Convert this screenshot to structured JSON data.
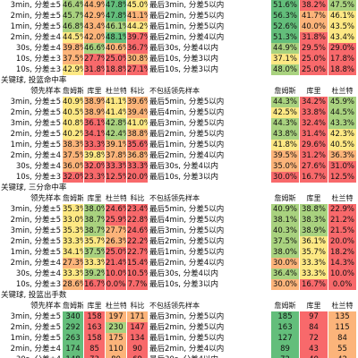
{
  "palette": {
    "dg": "#63be7b",
    "lg": "#a9d27f",
    "yl": "#fde884",
    "or": "#fcb47a",
    "rd": "#f8696b",
    "wh": "#ffffff"
  },
  "headers": [
    "詹姆斯",
    "库里",
    "杜兰特",
    "科比"
  ],
  "exclude_label": "不包括领先样本",
  "rows": [
    {
      "type": "data",
      "label": "3min, 分差±5",
      "v": [
        "46.4%",
        "44.9%",
        "47.8%",
        "45.0%"
      ],
      "c": [
        "lg",
        "or",
        "dg",
        "yl"
      ],
      "d": "最后3min, 分差5以内",
      "rv": [
        "51.6%",
        "38.2%",
        "47.5%"
      ],
      "rc": [
        "dg",
        "rd",
        "lg"
      ]
    },
    {
      "type": "data",
      "label": "2min, 分差±5",
      "v": [
        "45.7%",
        "42.9%",
        "47.8%",
        "41.1%"
      ],
      "c": [
        "lg",
        "or",
        "dg",
        "or"
      ],
      "d": "最后2min, 分差5以内",
      "rv": [
        "56.3%",
        "41.7%",
        "46.1%"
      ],
      "rc": [
        "dg",
        "or",
        "yl"
      ]
    },
    {
      "type": "data",
      "label": "1min, 分差±5",
      "v": [
        "46.8%",
        "43.4%",
        "46.1%",
        "44.2%"
      ],
      "c": [
        "lg",
        "or",
        "lg",
        "yl"
      ],
      "d": "最后1min, 分差5以内",
      "rv": [
        "52.6%",
        "40.0%",
        "43.5%"
      ],
      "rc": [
        "dg",
        "or",
        "yl"
      ]
    },
    {
      "type": "data",
      "label": "2min, 分差±4",
      "v": [
        "44.5%",
        "42.0%",
        "48.1%",
        "39.7%"
      ],
      "c": [
        "yl",
        "or",
        "dg",
        "rd"
      ],
      "d": "最后2min, 分差4以内",
      "rv": [
        "51.3%",
        "31.8%",
        "43.4%"
      ],
      "rc": [
        "dg",
        "rd",
        "yl"
      ]
    },
    {
      "type": "data",
      "label": "30s, 分差±4",
      "v": [
        "39.8%",
        "46.6%",
        "40.6%",
        "36.7%"
      ],
      "c": [
        "or",
        "lg",
        "or",
        "rd"
      ],
      "d": "最后30s, 分差4以内",
      "rv": [
        "44.9%",
        "29.5%",
        "29.0%"
      ],
      "rc": [
        "lg",
        "rd",
        "rd"
      ]
    },
    {
      "type": "data",
      "label": "10s, 分差±3",
      "v": [
        "37.5%",
        "27.7%",
        "25.0%",
        "30.8%"
      ],
      "c": [
        "or",
        "rd",
        "rd",
        "or"
      ],
      "d": "最后10s, 分差3以内",
      "rv": [
        "37.1%",
        "25.0%",
        "17.8%"
      ],
      "rc": [
        "yl",
        "rd",
        "rd"
      ]
    },
    {
      "type": "data",
      "label": "10s, 分差±3",
      "v": [
        "42.9%",
        "31.8%",
        "18.8%",
        "27.1%"
      ],
      "c": [
        "yl",
        "rd",
        "rd",
        "rd"
      ],
      "d": "最后10s, 分差3以内",
      "rv": [
        "48.0%",
        "25.0%",
        "18.8%"
      ],
      "rc": [
        "lg",
        "rd",
        "rd"
      ]
    },
    {
      "type": "title",
      "text": "关键球, 投篮命中率"
    },
    {
      "type": "header",
      "label": "领先样本"
    },
    {
      "type": "data",
      "label": "3min, 分差±5",
      "v": [
        "40.9%",
        "38.9%",
        "41.1%",
        "39.6%"
      ],
      "c": [
        "yl",
        "or",
        "yl",
        "or"
      ],
      "d": "最后5min, 分差5以内",
      "rv": [
        "44.3%",
        "34.2%",
        "45.9%"
      ],
      "rc": [
        "lg",
        "rd",
        "lg"
      ]
    },
    {
      "type": "data",
      "label": "2min, 分差±5",
      "v": [
        "40.5%",
        "38.9%",
        "41.4%",
        "39.4%"
      ],
      "c": [
        "yl",
        "or",
        "yl",
        "or"
      ],
      "d": "最后4min, 分差5以内",
      "rv": [
        "42.5%",
        "33.8%",
        "44.5%"
      ],
      "rc": [
        "yl",
        "rd",
        "lg"
      ]
    },
    {
      "type": "data",
      "label": "3min, 分差±5",
      "v": [
        "40.8%",
        "36.1%",
        "42.8%",
        "41.0%"
      ],
      "c": [
        "yl",
        "rd",
        "lg",
        "yl"
      ],
      "d": "最后3min, 分差5以内",
      "rv": [
        "44.3%",
        "32.4%",
        "43.3%"
      ],
      "rc": [
        "lg",
        "rd",
        "lg"
      ]
    },
    {
      "type": "data",
      "label": "2min, 分差±5",
      "v": [
        "40.2%",
        "34.1%",
        "42.4%",
        "38.8%"
      ],
      "c": [
        "yl",
        "rd",
        "lg",
        "or"
      ],
      "d": "最后2min, 分差5以内",
      "rv": [
        "43.8%",
        "31.4%",
        "42.3%"
      ],
      "rc": [
        "lg",
        "rd",
        "yl"
      ]
    },
    {
      "type": "data",
      "label": "1min, 分差±5",
      "v": [
        "38.3%",
        "33.3%",
        "39.1%",
        "35.6%"
      ],
      "c": [
        "or",
        "rd",
        "or",
        "rd"
      ],
      "d": "最后1min, 分差5以内",
      "rv": [
        "41.8%",
        "29.6%",
        "40.5%"
      ],
      "rc": [
        "yl",
        "rd",
        "yl"
      ]
    },
    {
      "type": "data",
      "label": "2min, 分差±4",
      "v": [
        "37.5%",
        "39.8%",
        "37.8%",
        "36.8%"
      ],
      "c": [
        "or",
        "yl",
        "or",
        "or"
      ],
      "d": "最后2min, 分差4以内",
      "rv": [
        "39.5%",
        "31.2%",
        "36.3%"
      ],
      "rc": [
        "or",
        "rd",
        "or"
      ]
    },
    {
      "type": "data",
      "label": "30s, 分差±4",
      "v": [
        "36.0%",
        "32.0%",
        "33.3%",
        "33.3%"
      ],
      "c": [
        "or",
        "rd",
        "rd",
        "rd"
      ],
      "d": "最后30s, 分差4以内",
      "rv": [
        "35.0%",
        "27.6%",
        "31.0%"
      ],
      "rc": [
        "or",
        "rd",
        "rd"
      ]
    },
    {
      "type": "data",
      "label": "10s, 分差±3",
      "v": [
        "32.0%",
        "23.3%",
        "12.5%",
        "20.0%"
      ],
      "c": [
        "rd",
        "rd",
        "rd",
        "rd"
      ],
      "d": "最后10s, 分差3以内",
      "rv": [
        "30.0%",
        "16.7%",
        "12.5%"
      ],
      "rc": [
        "rd",
        "rd",
        "rd"
      ]
    },
    {
      "type": "title",
      "text": "关键球, 三分命中率"
    },
    {
      "type": "header",
      "label": "领先样本"
    },
    {
      "type": "data",
      "label": "3min, 分差±5",
      "v": [
        "35.3%",
        "38.0%",
        "24.6%",
        "23.4%"
      ],
      "c": [
        "yl",
        "lg",
        "rd",
        "rd"
      ],
      "d": "最后5min, 分差5以内",
      "rv": [
        "40.9%",
        "38.8%",
        "22.9%"
      ],
      "rc": [
        "lg",
        "lg",
        "rd"
      ]
    },
    {
      "type": "data",
      "label": "2min, 分差±5",
      "v": [
        "33.0%",
        "38.7%",
        "25.9%",
        "22.8%"
      ],
      "c": [
        "yl",
        "lg",
        "rd",
        "rd"
      ],
      "d": "最后4min, 分差5以内",
      "rv": [
        "38.1%",
        "38.3%",
        "21.2%"
      ],
      "rc": [
        "lg",
        "lg",
        "rd"
      ]
    },
    {
      "type": "data",
      "label": "3min, 分差±5",
      "v": [
        "35.3%",
        "38.7%",
        "27.7%",
        "24.6%"
      ],
      "c": [
        "yl",
        "lg",
        "or",
        "rd"
      ],
      "d": "最后3min, 分差5以内",
      "rv": [
        "40.3%",
        "38.9%",
        "21.5%"
      ],
      "rc": [
        "lg",
        "lg",
        "rd"
      ]
    },
    {
      "type": "data",
      "label": "2min, 分差±5",
      "v": [
        "33.3%",
        "35.7%",
        "26.3%",
        "22.2%"
      ],
      "c": [
        "yl",
        "yl",
        "or",
        "rd"
      ],
      "d": "最后2min, 分差5以内",
      "rv": [
        "37.5%",
        "36.1%",
        "20.0%"
      ],
      "rc": [
        "lg",
        "yl",
        "rd"
      ]
    },
    {
      "type": "data",
      "label": "1min, 分差±5",
      "v": [
        "34.1%",
        "37.5%",
        "25.0%",
        "22.7%"
      ],
      "c": [
        "yl",
        "lg",
        "rd",
        "rd"
      ],
      "d": "最后1min, 分差5以内",
      "rv": [
        "38.0%",
        "35.7%",
        "18.2%"
      ],
      "rc": [
        "lg",
        "yl",
        "rd"
      ]
    },
    {
      "type": "data",
      "label": "2min, 分差±4",
      "v": [
        "27.3%",
        "33.3%",
        "21.4%",
        "15.4%"
      ],
      "c": [
        "or",
        "yl",
        "rd",
        "rd"
      ],
      "d": "最后2min, 分差4以内",
      "rv": [
        "30.0%",
        "33.3%",
        "14.3%"
      ],
      "rc": [
        "or",
        "yl",
        "rd"
      ]
    },
    {
      "type": "data",
      "label": "30s, 分差±4",
      "v": [
        "33.3%",
        "39.2%",
        "10.0%",
        "10.5%"
      ],
      "c": [
        "yl",
        "lg",
        "rd",
        "rd"
      ],
      "d": "最后30s, 分差4以内",
      "rv": [
        "36.4%",
        "33.3%",
        "10.0%"
      ],
      "rc": [
        "lg",
        "yl",
        "rd"
      ]
    },
    {
      "type": "data",
      "label": "10s, 分差±3",
      "v": [
        "28.6%",
        "16.7%",
        "0.0%",
        "7.7%"
      ],
      "c": [
        "or",
        "rd",
        "rd",
        "rd"
      ],
      "d": "最后10s, 分差3以内",
      "rv": [
        "30.0%",
        "16.7%",
        "0.0%"
      ],
      "rc": [
        "or",
        "rd",
        "rd"
      ]
    },
    {
      "type": "title",
      "text": "关键球, 投篮出手数"
    },
    {
      "type": "header",
      "label": "领先样本"
    },
    {
      "type": "data",
      "label": "3min, 分差±5",
      "v": [
        "340",
        "158",
        "197",
        "171"
      ],
      "c": [
        "dg",
        "rd",
        "or",
        "or"
      ],
      "d": "最后3min, 分差5以内",
      "rv": [
        "185",
        "97",
        "135"
      ],
      "rc": [
        "dg",
        "rd",
        "or"
      ]
    },
    {
      "type": "data",
      "label": "2min, 分差±5",
      "v": [
        "292",
        "163",
        "230",
        "147"
      ],
      "c": [
        "dg",
        "rd",
        "lg",
        "rd"
      ],
      "d": "最后2min, 分差5以内",
      "rv": [
        "163",
        "84",
        "115"
      ],
      "rc": [
        "dg",
        "rd",
        "or"
      ]
    },
    {
      "type": "data",
      "label": "1min, 分差±5",
      "v": [
        "263",
        "158",
        "175",
        "134"
      ],
      "c": [
        "dg",
        "rd",
        "or",
        "rd"
      ],
      "d": "最后1min, 分差5以内",
      "rv": [
        "127",
        "72",
        "84"
      ],
      "rc": [
        "dg",
        "rd",
        "or"
      ]
    },
    {
      "type": "data",
      "label": "2min, 分差±4",
      "v": [
        "174",
        "85",
        "110",
        "90"
      ],
      "c": [
        "dg",
        "rd",
        "or",
        "rd"
      ],
      "d": "最后2min, 分差4以内",
      "rv": [
        "89",
        "43",
        "55"
      ],
      "rc": [
        "dg",
        "rd",
        "or"
      ]
    },
    {
      "type": "data",
      "label": "30s, 分差±4",
      "v": [
        "148",
        "73",
        "80",
        "69"
      ],
      "c": [
        "dg",
        "rd",
        "or",
        "rd"
      ],
      "d": "最后30s, 分差4以内",
      "rv": [
        "72",
        "40",
        "42"
      ],
      "rc": [
        "dg",
        "rd",
        "or"
      ]
    }
  ]
}
